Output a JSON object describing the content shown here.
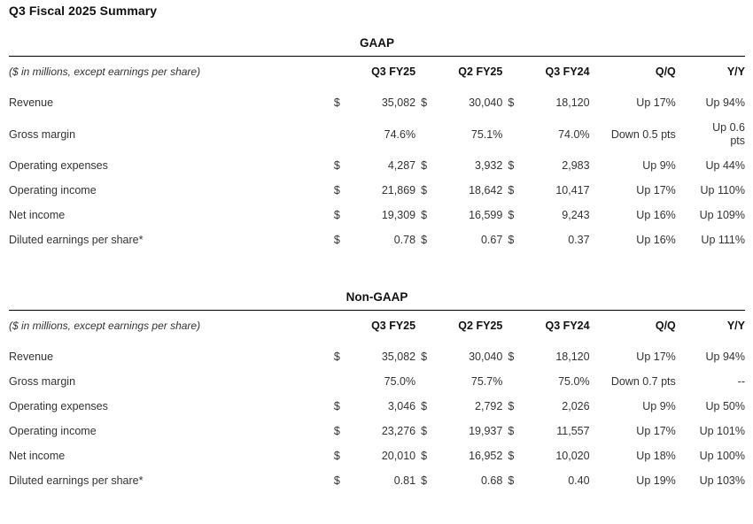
{
  "page_title": "Q3 Fiscal 2025 Summary",
  "tables": [
    {
      "section_title": "GAAP",
      "note": "($ in millions, except earnings per share)",
      "columns": [
        "Q3 FY25",
        "Q2 FY25",
        "Q3 FY24",
        "Q/Q",
        "Y/Y"
      ],
      "rows": [
        {
          "label": "Revenue",
          "d1": "$",
          "v1": "35,082",
          "d2": "$",
          "v2": "30,040",
          "d3": "$",
          "v3": "18,120",
          "qq": "Up 17%",
          "yy": "Up 94%"
        },
        {
          "label": "Gross margin",
          "d1": "",
          "v1": "74.6%",
          "d2": "",
          "v2": "75.1%",
          "d3": "",
          "v3": "74.0%",
          "qq": "Down 0.5 pts",
          "yy": "Up 0.6\npts"
        },
        {
          "label": "Operating expenses",
          "d1": "$",
          "v1": "4,287",
          "d2": "$",
          "v2": "3,932",
          "d3": "$",
          "v3": "2,983",
          "qq": "Up 9%",
          "yy": "Up 44%"
        },
        {
          "label": "Operating income",
          "d1": "$",
          "v1": "21,869",
          "d2": "$",
          "v2": "18,642",
          "d3": "$",
          "v3": "10,417",
          "qq": "Up 17%",
          "yy": "Up 110%"
        },
        {
          "label": "Net income",
          "d1": "$",
          "v1": "19,309",
          "d2": "$",
          "v2": "16,599",
          "d3": "$",
          "v3": "9,243",
          "qq": "Up 16%",
          "yy": "Up 109%"
        },
        {
          "label": "Diluted earnings per share*",
          "d1": "$",
          "v1": "0.78",
          "d2": "$",
          "v2": "0.67",
          "d3": "$",
          "v3": "0.37",
          "qq": "Up 16%",
          "yy": "Up 111%"
        }
      ]
    },
    {
      "section_title": "Non-GAAP",
      "note": "($ in millions, except earnings per share)",
      "columns": [
        "Q3 FY25",
        "Q2 FY25",
        "Q3 FY24",
        "Q/Q",
        "Y/Y"
      ],
      "rows": [
        {
          "label": "Revenue",
          "d1": "$",
          "v1": "35,082",
          "d2": "$",
          "v2": "30,040",
          "d3": "$",
          "v3": "18,120",
          "qq": "Up 17%",
          "yy": "Up 94%"
        },
        {
          "label": "Gross margin",
          "d1": "",
          "v1": "75.0%",
          "d2": "",
          "v2": "75.7%",
          "d3": "",
          "v3": "75.0%",
          "qq": "Down 0.7 pts",
          "yy": "--"
        },
        {
          "label": "Operating expenses",
          "d1": "$",
          "v1": "3,046",
          "d2": "$",
          "v2": "2,792",
          "d3": "$",
          "v3": "2,026",
          "qq": "Up 9%",
          "yy": "Up 50%"
        },
        {
          "label": "Operating income",
          "d1": "$",
          "v1": "23,276",
          "d2": "$",
          "v2": "19,937",
          "d3": "$",
          "v3": "11,557",
          "qq": "Up 17%",
          "yy": "Up 101%"
        },
        {
          "label": "Net income",
          "d1": "$",
          "v1": "20,010",
          "d2": "$",
          "v2": "16,952",
          "d3": "$",
          "v3": "10,020",
          "qq": "Up 18%",
          "yy": "Up 100%"
        },
        {
          "label": "Diluted earnings per share*",
          "d1": "$",
          "v1": "0.81",
          "d2": "$",
          "v2": "0.68",
          "d3": "$",
          "v3": "0.40",
          "qq": "Up 19%",
          "yy": "Up 103%"
        }
      ]
    }
  ]
}
